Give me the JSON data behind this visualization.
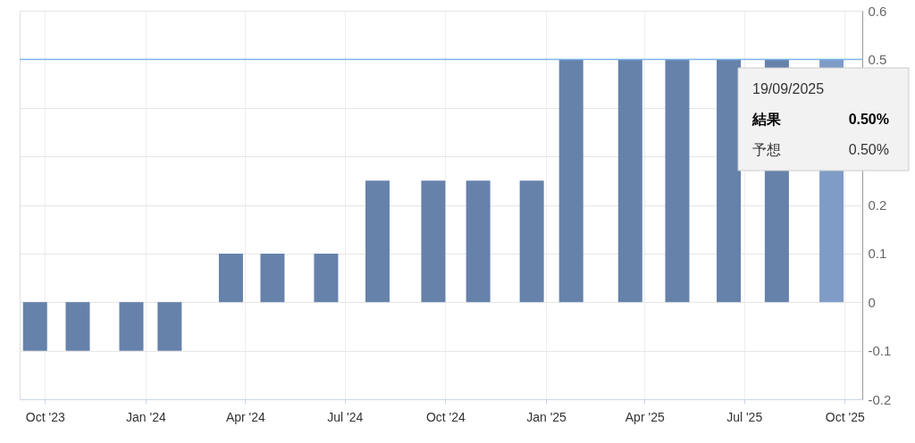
{
  "chart_data": {
    "type": "bar",
    "x": [
      "2023-09-22",
      "2023-10-31",
      "2023-12-19",
      "2024-01-23",
      "2024-03-19",
      "2024-04-26",
      "2024-06-14",
      "2024-07-31",
      "2024-09-20",
      "2024-10-31",
      "2024-12-19",
      "2025-01-24",
      "2025-03-19",
      "2025-05-01",
      "2025-06-17",
      "2025-07-31",
      "2025-09-19"
    ],
    "values": [
      -0.1,
      -0.1,
      -0.1,
      -0.1,
      0.1,
      0.1,
      0.1,
      0.25,
      0.25,
      0.25,
      0.25,
      0.5,
      0.5,
      0.5,
      0.5,
      0.5,
      0.5
    ],
    "colors": [
      "#6682ab",
      "#6682ab",
      "#6682ab",
      "#6682ab",
      "#6682ab",
      "#6682ab",
      "#6682ab",
      "#6682ab",
      "#6682ab",
      "#6682ab",
      "#6682ab",
      "#6682ab",
      "#6682ab",
      "#6682ab",
      "#6682ab",
      "#6682ab",
      "#7f9cc7"
    ],
    "xlim": [
      "2023-09-12",
      "2025-10-13"
    ],
    "xticks": [
      {
        "value": "2023-10-01",
        "label": "Oct '23"
      },
      {
        "value": "2024-01-01",
        "label": "Jan '24"
      },
      {
        "value": "2024-04-01",
        "label": "Apr '24"
      },
      {
        "value": "2024-07-01",
        "label": "Jul '24"
      },
      {
        "value": "2024-10-01",
        "label": "Oct '24"
      },
      {
        "value": "2025-01-01",
        "label": "Jan '25"
      },
      {
        "value": "2025-04-01",
        "label": "Apr '25"
      },
      {
        "value": "2025-07-01",
        "label": "Jul '25"
      },
      {
        "value": "2025-10-01",
        "label": "Oct '25"
      }
    ],
    "ylim": [
      -0.2,
      0.6
    ],
    "yticks": [
      -0.2,
      -0.1,
      0,
      0.1,
      0.2,
      {
        "value": 0.3,
        "label": null
      },
      {
        "value": 0.4,
        "label": null
      },
      0.5,
      0.6
    ],
    "ref_lines": [
      {
        "axis": "y",
        "value": 0.5,
        "color": "#7cb5ec"
      }
    ],
    "grid": true,
    "annotations": [
      "19/09/2025",
      "結果",
      "0.50%",
      "予想",
      "0.50%"
    ]
  }
}
